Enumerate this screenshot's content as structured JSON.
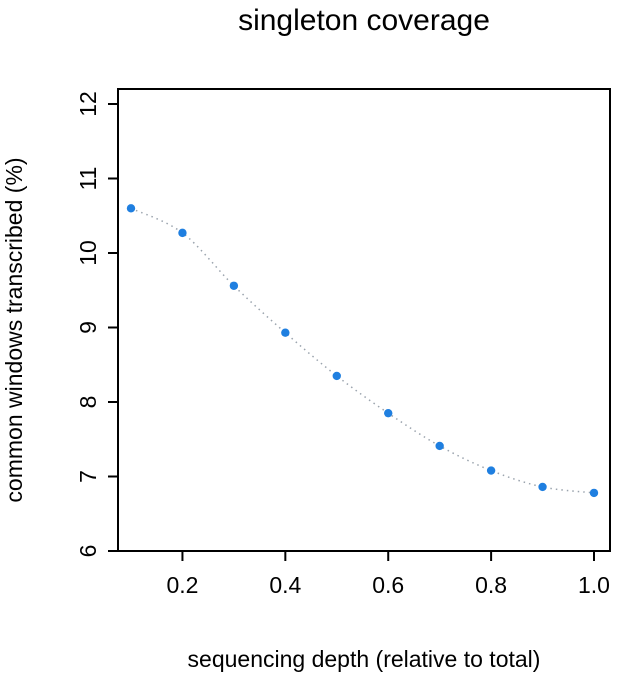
{
  "chart_data": {
    "type": "scatter",
    "title": "singleton coverage",
    "xlabel": "sequencing depth (relative to total)",
    "ylabel": "common windows transcribed (%)",
    "xlim": [
      0.1,
      1.0
    ],
    "ylim": [
      6,
      12
    ],
    "xticks": [
      0.2,
      0.4,
      0.6,
      0.8,
      1.0
    ],
    "xtick_labels": [
      "0.2",
      "0.4",
      "0.6",
      "0.8",
      "1.0"
    ],
    "yticks": [
      6,
      7,
      8,
      9,
      10,
      11,
      12
    ],
    "ytick_labels": [
      "6",
      "7",
      "8",
      "9",
      "10",
      "11",
      "12"
    ],
    "grid": false,
    "point_color": "#1f7fe0",
    "trend_color": "#9aa3ad",
    "series": [
      {
        "x": [
          0.1,
          0.2,
          0.3,
          0.4,
          0.5,
          0.6,
          0.7,
          0.8,
          0.9,
          1.0
        ],
        "y": [
          10.6,
          10.27,
          9.56,
          8.93,
          8.35,
          7.85,
          7.41,
          7.08,
          6.86,
          6.78
        ]
      }
    ]
  }
}
